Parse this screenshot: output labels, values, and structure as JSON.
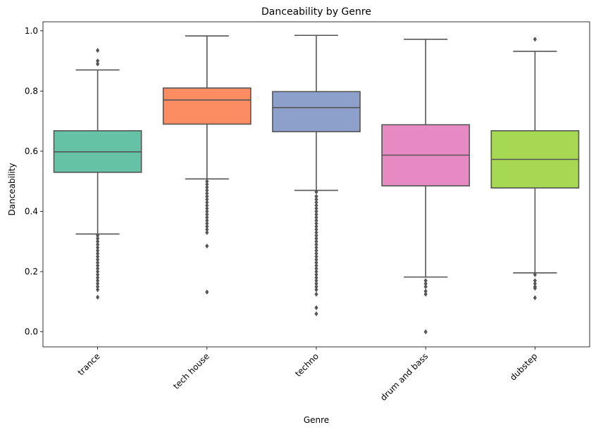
{
  "chart_data": {
    "type": "box",
    "title": "Danceability by Genre",
    "xlabel": "Genre",
    "ylabel": "Danceability",
    "ylim": [
      -0.05,
      1.03
    ],
    "yticks": [
      0.0,
      0.2,
      0.4,
      0.6,
      0.8,
      1.0
    ],
    "ytick_labels": [
      "0.0",
      "0.2",
      "0.4",
      "0.6",
      "0.8",
      "1.0"
    ],
    "grid": false,
    "legend": null,
    "categories": [
      "trance",
      "tech house",
      "techno",
      "drum and bass",
      "dubstep"
    ],
    "colors": [
      "#66c2a5",
      "#fc8d62",
      "#8da0cb",
      "#e78ac3",
      "#a6d854"
    ],
    "median_color": "#555555",
    "boxes": [
      {
        "category": "trance",
        "whisker_low": 0.325,
        "q1": 0.53,
        "median": 0.598,
        "q3": 0.668,
        "whisker_high": 0.87,
        "outliers": [
          0.935,
          0.9,
          0.89,
          0.32,
          0.31,
          0.3,
          0.29,
          0.28,
          0.27,
          0.26,
          0.25,
          0.24,
          0.23,
          0.22,
          0.21,
          0.2,
          0.19,
          0.18,
          0.17,
          0.16,
          0.15,
          0.14,
          0.115
        ]
      },
      {
        "category": "tech house",
        "whisker_low": 0.508,
        "q1": 0.69,
        "median": 0.77,
        "q3": 0.81,
        "whisker_high": 0.983,
        "outliers": [
          0.5,
          0.49,
          0.48,
          0.47,
          0.46,
          0.45,
          0.44,
          0.43,
          0.42,
          0.41,
          0.4,
          0.39,
          0.38,
          0.37,
          0.36,
          0.35,
          0.34,
          0.33,
          0.285,
          0.132
        ]
      },
      {
        "category": "techno",
        "whisker_low": 0.47,
        "q1": 0.665,
        "median": 0.745,
        "q3": 0.798,
        "whisker_high": 0.985,
        "outliers": [
          0.465,
          0.45,
          0.44,
          0.43,
          0.42,
          0.41,
          0.4,
          0.39,
          0.38,
          0.37,
          0.36,
          0.35,
          0.34,
          0.33,
          0.32,
          0.31,
          0.3,
          0.29,
          0.28,
          0.27,
          0.26,
          0.25,
          0.24,
          0.23,
          0.22,
          0.21,
          0.2,
          0.19,
          0.18,
          0.17,
          0.16,
          0.15,
          0.14,
          0.125,
          0.08,
          0.06
        ]
      },
      {
        "category": "drum and bass",
        "whisker_low": 0.182,
        "q1": 0.485,
        "median": 0.587,
        "q3": 0.688,
        "whisker_high": 0.972,
        "outliers": [
          0.17,
          0.16,
          0.15,
          0.135,
          0.125,
          0.0
        ]
      },
      {
        "category": "dubstep",
        "whisker_low": 0.196,
        "q1": 0.478,
        "median": 0.573,
        "q3": 0.668,
        "whisker_high": 0.932,
        "outliers": [
          0.972,
          0.19,
          0.17,
          0.16,
          0.15,
          0.145,
          0.113
        ]
      }
    ]
  }
}
